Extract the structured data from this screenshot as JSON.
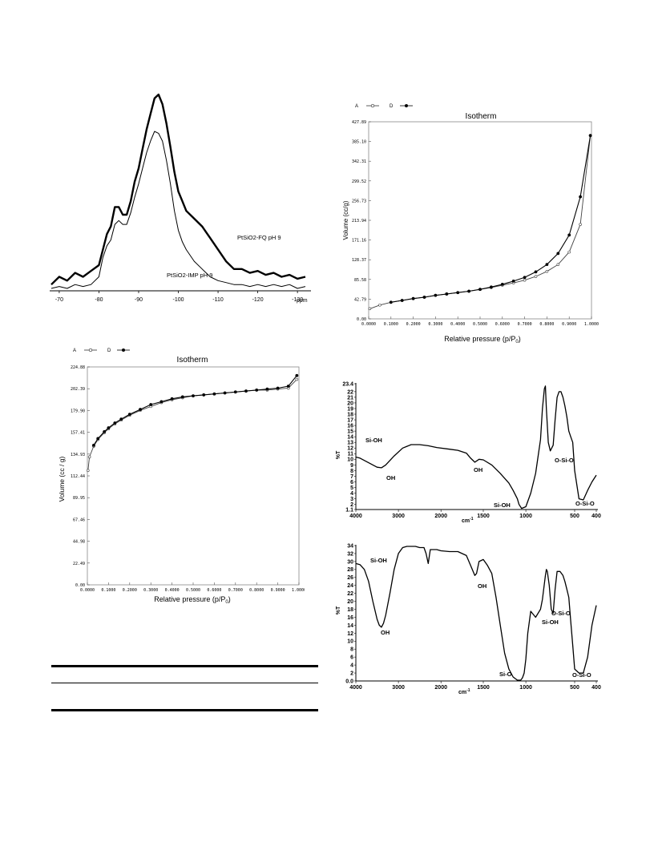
{
  "chart_data": [
    {
      "id": "nmr",
      "type": "line",
      "xlabel": "ppm",
      "xlim": [
        -68,
        -133
      ],
      "x_ticks": [
        "-70",
        "-80",
        "-90",
        "-100",
        "-110",
        "-120",
        "-130"
      ],
      "x_tick_values": [
        -70,
        -80,
        -90,
        -100,
        -110,
        -120,
        -130
      ],
      "series": [
        {
          "name": "PtSiO2-FQ pH 9",
          "style": "thick",
          "x": [
            -68,
            -70,
            -72,
            -74,
            -76,
            -78,
            -80,
            -81,
            -82,
            -83,
            -84,
            -85,
            -86,
            -87,
            -88,
            -89,
            -90,
            -91,
            -92,
            -93,
            -94,
            -95,
            -96,
            -97,
            -98,
            -99,
            -100,
            -101,
            -102,
            -104,
            -106,
            -108,
            -110,
            -112,
            -114,
            -116,
            -118,
            -120,
            -122,
            -124,
            -126,
            -128,
            -130,
            -132
          ],
          "y": [
            0.02,
            0.06,
            0.04,
            0.08,
            0.06,
            0.09,
            0.12,
            0.2,
            0.28,
            0.32,
            0.42,
            0.42,
            0.38,
            0.38,
            0.45,
            0.55,
            0.62,
            0.72,
            0.82,
            0.9,
            0.98,
            1.0,
            0.95,
            0.85,
            0.73,
            0.6,
            0.5,
            0.45,
            0.4,
            0.36,
            0.32,
            0.26,
            0.2,
            0.14,
            0.1,
            0.1,
            0.08,
            0.09,
            0.07,
            0.08,
            0.06,
            0.07,
            0.05,
            0.06
          ]
        },
        {
          "name": "PtSiO2-IMP pH 9",
          "style": "thin",
          "x": [
            -68,
            -70,
            -72,
            -74,
            -76,
            -78,
            -80,
            -81,
            -82,
            -83,
            -84,
            -85,
            -86,
            -87,
            -88,
            -89,
            -90,
            -91,
            -92,
            -93,
            -94,
            -95,
            -96,
            -97,
            -98,
            -99,
            -100,
            -101,
            -102,
            -104,
            -106,
            -108,
            -110,
            -112,
            -114,
            -116,
            -118,
            -120,
            -122,
            -124,
            -126,
            -128,
            -130,
            -132
          ],
          "y": [
            0.0,
            0.01,
            0.0,
            0.02,
            0.01,
            0.02,
            0.06,
            0.16,
            0.22,
            0.25,
            0.33,
            0.35,
            0.33,
            0.33,
            0.39,
            0.47,
            0.54,
            0.62,
            0.7,
            0.76,
            0.81,
            0.8,
            0.76,
            0.66,
            0.54,
            0.4,
            0.3,
            0.24,
            0.2,
            0.14,
            0.1,
            0.06,
            0.04,
            0.03,
            0.02,
            0.02,
            0.01,
            0.02,
            0.01,
            0.02,
            0.01,
            0.02,
            0.0,
            0.01
          ]
        }
      ]
    },
    {
      "id": "iso1",
      "type": "line",
      "title": "Isotherm",
      "xlabel": "Relative pressure (p/P",
      "xlabel_sub": "0",
      "xlabel_end": ")",
      "ylabel": "Volume (cc/g)",
      "xlim": [
        0,
        1.0
      ],
      "ylim": [
        0,
        427.89
      ],
      "y_ticks": [
        "0.00",
        "42.79",
        "85.58",
        "128.37",
        "171.16",
        "213.94",
        "256.73",
        "299.52",
        "342.31",
        "385.10",
        "427.89"
      ],
      "x_ticks": [
        "0.0000",
        "0.1000",
        "0.2000",
        "0.3000",
        "0.4000",
        "0.5000",
        "0.6000",
        "0.7000",
        "0.8000",
        "0.9000",
        "1.0000"
      ],
      "legend": [
        {
          "label": "A",
          "marker": "open"
        },
        {
          "label": "D",
          "marker": "filled"
        }
      ],
      "series": [
        {
          "name": "A",
          "x": [
            0.005,
            0.05,
            0.1,
            0.15,
            0.2,
            0.25,
            0.3,
            0.35,
            0.4,
            0.45,
            0.5,
            0.55,
            0.6,
            0.65,
            0.7,
            0.75,
            0.8,
            0.85,
            0.9,
            0.95,
            0.995
          ],
          "y": [
            22,
            30,
            36,
            40,
            44,
            47,
            51,
            54,
            57,
            60,
            64,
            68,
            73,
            78,
            84,
            92,
            103,
            118,
            145,
            205,
            398
          ]
        },
        {
          "name": "D",
          "x": [
            0.995,
            0.95,
            0.9,
            0.85,
            0.8,
            0.75,
            0.7,
            0.65,
            0.6,
            0.55,
            0.5,
            0.45,
            0.4,
            0.35,
            0.3,
            0.25,
            0.2,
            0.15,
            0.1
          ],
          "y": [
            398,
            265,
            182,
            142,
            118,
            102,
            90,
            82,
            75,
            69,
            64,
            60,
            57,
            54,
            51,
            47,
            44,
            40,
            36
          ]
        }
      ]
    },
    {
      "id": "iso2",
      "type": "line",
      "title": "Isotherm",
      "xlabel": "Relative pressure (p/P",
      "xlabel_sub": "0",
      "xlabel_end": ")",
      "ylabel": "Volume (cc / g)",
      "xlim": [
        0,
        1.0
      ],
      "ylim": [
        0,
        224.88
      ],
      "y_ticks": [
        "0.00",
        "22.49",
        "44.98",
        "67.46",
        "89.95",
        "112.44",
        "134.93",
        "157.41",
        "179.90",
        "202.39",
        "224.88"
      ],
      "x_ticks": [
        "0.0000",
        "0.1000",
        "0.2000",
        "0.3000",
        "0.4000",
        "0.5000",
        "0.6000",
        "0.7000",
        "0.8000",
        "0.9000",
        "1.0000"
      ],
      "legend": [
        {
          "label": "A",
          "marker": "open"
        },
        {
          "label": "D",
          "marker": "filled"
        }
      ],
      "series": [
        {
          "name": "A",
          "x": [
            0.003,
            0.01,
            0.03,
            0.05,
            0.08,
            0.1,
            0.13,
            0.16,
            0.2,
            0.25,
            0.3,
            0.35,
            0.4,
            0.45,
            0.5,
            0.55,
            0.6,
            0.65,
            0.7,
            0.75,
            0.8,
            0.85,
            0.9,
            0.95,
            0.99
          ],
          "y": [
            118,
            132,
            143,
            150,
            157,
            161,
            166,
            170,
            175,
            180,
            184,
            188,
            191,
            193,
            195,
            196,
            197,
            198,
            199,
            200,
            201,
            201,
            202,
            203,
            212
          ]
        },
        {
          "name": "D",
          "x": [
            0.99,
            0.95,
            0.9,
            0.85,
            0.8,
            0.75,
            0.7,
            0.65,
            0.6,
            0.55,
            0.5,
            0.45,
            0.4,
            0.35,
            0.3,
            0.25,
            0.2,
            0.16,
            0.13,
            0.1,
            0.08,
            0.05,
            0.03
          ],
          "y": [
            216,
            205,
            203,
            202,
            201,
            200,
            199,
            198,
            197,
            196,
            195,
            194,
            192,
            189,
            186,
            181,
            176,
            171,
            167,
            162,
            158,
            151,
            144
          ]
        }
      ]
    },
    {
      "id": "ir1",
      "type": "line",
      "ylabel": "%T",
      "xlabel": "cm",
      "xlabel_sup": "-1",
      "xlim": [
        4000,
        400
      ],
      "ylim": [
        1.1,
        23.4
      ],
      "y_ticks": [
        "1.1",
        "2",
        "3",
        "4",
        "5",
        "6",
        "7",
        "8",
        "9",
        "10",
        "11",
        "12",
        "13",
        "14",
        "15",
        "16",
        "17",
        "18",
        "19",
        "20",
        "21",
        "22",
        "23.4"
      ],
      "y_tick_values": [
        1.1,
        2,
        3,
        4,
        5,
        6,
        7,
        8,
        9,
        10,
        11,
        12,
        13,
        14,
        15,
        16,
        17,
        18,
        19,
        20,
        21,
        22,
        23.4
      ],
      "x_ticks": [
        "4000",
        "3000",
        "2000",
        "1500",
        "1000",
        "500",
        "400"
      ],
      "annotations": [
        "Si-OH",
        "OH",
        "OH",
        "Si-OH",
        "O-Si-O",
        "O-Si-O"
      ],
      "series": [
        {
          "name": "",
          "x": [
            4000,
            3900,
            3700,
            3500,
            3400,
            3300,
            3100,
            2900,
            2700,
            2500,
            2300,
            2100,
            1900,
            1800,
            1700,
            1650,
            1600,
            1550,
            1500,
            1400,
            1300,
            1200,
            1150,
            1100,
            1080,
            1050,
            1000,
            950,
            900,
            850,
            830,
            810,
            800,
            790,
            770,
            750,
            720,
            700,
            680,
            660,
            640,
            620,
            600,
            580,
            560,
            540,
            520,
            500,
            480,
            460,
            440,
            420,
            400
          ],
          "y": [
            10.4,
            10.2,
            9.4,
            8.6,
            8.5,
            9.0,
            10.6,
            12.0,
            12.6,
            12.6,
            12.4,
            12.1,
            11.8,
            11.6,
            11.1,
            10.2,
            9.5,
            10.0,
            9.9,
            9.0,
            7.5,
            5.8,
            4.5,
            3.0,
            2.0,
            1.3,
            1.6,
            4.0,
            7.5,
            13.5,
            19.0,
            22.5,
            23.0,
            19.0,
            13.0,
            11.5,
            12.5,
            17.0,
            21.0,
            22.0,
            22.0,
            21.0,
            19.5,
            17.5,
            15.0,
            14.0,
            13.0,
            8.0,
            3.0,
            2.8,
            4.5,
            6.0,
            7.2
          ]
        }
      ]
    },
    {
      "id": "ir2",
      "type": "line",
      "ylabel": "%T",
      "xlabel": "cm",
      "xlabel_sup": "-1",
      "xlim": [
        4000,
        400
      ],
      "ylim": [
        0,
        34
      ],
      "y_ticks": [
        "0.0",
        "2",
        "4",
        "6",
        "8",
        "10",
        "12",
        "14",
        "16",
        "18",
        "20",
        "22",
        "24",
        "26",
        "28",
        "30",
        "32",
        "34"
      ],
      "y_tick_values": [
        0,
        2,
        4,
        6,
        8,
        10,
        12,
        14,
        16,
        18,
        20,
        22,
        24,
        26,
        28,
        30,
        32,
        34
      ],
      "x_ticks": [
        "4000",
        "3000",
        "2000",
        "1500",
        "1000",
        "500",
        "400"
      ],
      "annotations": [
        "Si-OH",
        "OH",
        "OH",
        "Si-O",
        "Si-OH",
        "O-Si-O",
        "O-Si-O"
      ],
      "series": [
        {
          "name": "",
          "x": [
            4000,
            3900,
            3800,
            3700,
            3600,
            3500,
            3450,
            3400,
            3350,
            3300,
            3200,
            3100,
            3000,
            2900,
            2800,
            2700,
            2600,
            2500,
            2400,
            2350,
            2300,
            2250,
            2100,
            2000,
            1900,
            1800,
            1700,
            1650,
            1620,
            1600,
            1580,
            1550,
            1500,
            1450,
            1400,
            1350,
            1300,
            1250,
            1200,
            1150,
            1100,
            1060,
            1040,
            1020,
            1000,
            980,
            950,
            900,
            850,
            830,
            800,
            790,
            780,
            760,
            740,
            720,
            700,
            680,
            650,
            620,
            600,
            580,
            560,
            540,
            520,
            500,
            480,
            460,
            440,
            420,
            400
          ],
          "y": [
            29.5,
            29.2,
            28.0,
            25.0,
            20.0,
            15.5,
            14.0,
            13.5,
            14.5,
            16.5,
            22.0,
            28.0,
            32.0,
            33.5,
            33.8,
            33.8,
            33.8,
            33.5,
            33.5,
            32.0,
            29.5,
            33.0,
            33.0,
            32.7,
            32.5,
            32.5,
            31.5,
            29.0,
            27.5,
            26.5,
            27.0,
            30.0,
            30.5,
            29.0,
            27.0,
            21.0,
            14.0,
            7.0,
            3.0,
            1.0,
            0.2,
            0.2,
            0.8,
            2.0,
            5.5,
            12.0,
            17.5,
            16.0,
            18.0,
            20.5,
            26.5,
            28.0,
            27.5,
            24.0,
            18.0,
            17.0,
            23.0,
            27.5,
            27.5,
            26.5,
            25.0,
            23.0,
            21.0,
            15.0,
            9.0,
            3.0,
            2.0,
            2.0,
            6.0,
            14.0,
            19.0
          ]
        }
      ]
    }
  ]
}
